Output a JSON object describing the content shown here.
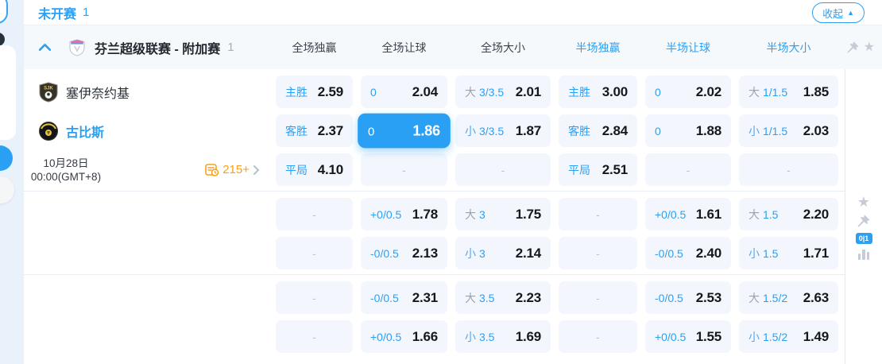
{
  "topbar": {
    "status": "未开赛",
    "count": "1",
    "collapse": "收起"
  },
  "header": {
    "league": "芬兰超级联赛 - 附加赛",
    "count": "1",
    "columns": [
      "全场独赢",
      "全场让球",
      "全场大小",
      "半场独赢",
      "半场让球",
      "半场大小"
    ]
  },
  "match": {
    "home": "塞伊奈约基",
    "away": "古比斯",
    "date": "10月28日",
    "time": "00:00(GMT+8)",
    "more": "215+"
  },
  "rail": {
    "badge": "0|1"
  },
  "misc": {
    "dash": "-"
  },
  "colors": {
    "accent": "#2aa0f5",
    "selected_bg": "#2aa0f5",
    "orange": "#f7a11a"
  },
  "sections": [
    {
      "rows": [
        [
          {
            "l": "主胜",
            "v": "2.59"
          },
          {
            "l": "0",
            "v": "2.04"
          },
          {
            "p": "大",
            "l": "3/3.5",
            "v": "2.01"
          },
          {
            "l": "主胜",
            "v": "3.00"
          },
          {
            "l": "0",
            "v": "2.02"
          },
          {
            "p": "大",
            "l": "1/1.5",
            "v": "1.85"
          }
        ],
        [
          {
            "l": "客胜",
            "v": "2.37"
          },
          {
            "l": "0",
            "v": "1.86",
            "sel": true
          },
          {
            "p": "小",
            "l": "3/3.5",
            "v": "1.87"
          },
          {
            "l": "客胜",
            "v": "2.84"
          },
          {
            "l": "0",
            "v": "1.88"
          },
          {
            "p": "小",
            "l": "1/1.5",
            "v": "2.03"
          }
        ],
        [
          {
            "l": "平局",
            "v": "4.10"
          },
          {
            "e": true
          },
          {
            "e": true
          },
          {
            "l": "平局",
            "v": "2.51"
          },
          {
            "e": true
          },
          {
            "e": true
          }
        ]
      ]
    },
    {
      "rows": [
        [
          {
            "e": true
          },
          {
            "l": "+0/0.5",
            "v": "1.78"
          },
          {
            "p": "大",
            "l": "3",
            "v": "1.75"
          },
          {
            "e": true
          },
          {
            "l": "+0/0.5",
            "v": "1.61"
          },
          {
            "p": "大",
            "l": "1.5",
            "v": "2.20"
          }
        ],
        [
          {
            "e": true
          },
          {
            "l": "-0/0.5",
            "v": "2.13"
          },
          {
            "p": "小",
            "l": "3",
            "v": "2.14"
          },
          {
            "e": true
          },
          {
            "l": "-0/0.5",
            "v": "2.40"
          },
          {
            "p": "小",
            "l": "1.5",
            "v": "1.71"
          }
        ]
      ]
    },
    {
      "rows": [
        [
          {
            "e": true
          },
          {
            "l": "-0/0.5",
            "v": "2.31"
          },
          {
            "p": "大",
            "l": "3.5",
            "v": "2.23"
          },
          {
            "e": true
          },
          {
            "l": "-0/0.5",
            "v": "2.53"
          },
          {
            "p": "大",
            "l": "1.5/2",
            "v": "2.63"
          }
        ],
        [
          {
            "e": true
          },
          {
            "l": "+0/0.5",
            "v": "1.66"
          },
          {
            "p": "小",
            "l": "3.5",
            "v": "1.69"
          },
          {
            "e": true
          },
          {
            "l": "+0/0.5",
            "v": "1.55"
          },
          {
            "p": "小",
            "l": "1.5/2",
            "v": "1.49"
          }
        ]
      ]
    }
  ]
}
